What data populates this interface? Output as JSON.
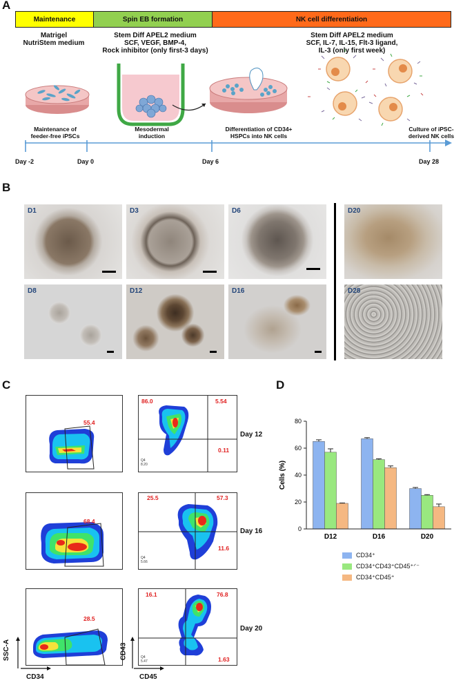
{
  "panel_labels": {
    "a": "A",
    "b": "B",
    "c": "C",
    "d": "D"
  },
  "panel_a": {
    "phases": [
      {
        "label": "Maintenance",
        "color": "#ffff00"
      },
      {
        "label": "Spin EB formation",
        "color": "#92d050"
      },
      {
        "label": "NK cell differentiation",
        "color": "#ff6a1a"
      }
    ],
    "media": [
      "Matrigel\nNutriStem medium",
      "Stem Diff APEL2 medium\nSCF, VEGF, BMP-4,\nRock inhibitor (only first-3 days)",
      "Stem Diff APEL2 medium\nSCF, IL-7, IL-15, Flt-3 ligand,\nIL-3 (only first week)"
    ],
    "steps": [
      "Maintenance of\nfeeder-free iPSCs",
      "Mesodermal\ninduction",
      "Differentiation of CD34+\nHSPCs into NK cells",
      "Culture of iPSC-\nderived NK cells"
    ],
    "days": [
      "Day -2",
      "Day 0",
      "Day 6",
      "Day 28"
    ],
    "timeline_color": "#5a9bd5"
  },
  "panel_b": {
    "tiles": [
      "D1",
      "D3",
      "D6",
      "D20",
      "D8",
      "D12",
      "D16",
      "D28"
    ]
  },
  "panel_c": {
    "gates": [
      "55.4",
      "68.4",
      "28.5"
    ],
    "quadrants": [
      {
        "ul": "86.0",
        "ur": "5.54",
        "lr": "0.11",
        "q4": "Q4\n8.20"
      },
      {
        "ul": "25.5",
        "ur": "57.3",
        "lr": "11.6",
        "q4": "Q4\n5.66"
      },
      {
        "ul": "16.1",
        "ur": "76.8",
        "lr": "1.63",
        "q4": "Q4\n5.47"
      }
    ],
    "day_labels": [
      "Day 12",
      "Day 16",
      "Day 20"
    ],
    "axes": {
      "ssc": "SSC-A",
      "cd34": "CD34",
      "cd43": "CD43",
      "cd45": "CD45"
    }
  },
  "chart_data": {
    "type": "bar",
    "categories": [
      "D12",
      "D16",
      "D20"
    ],
    "series": [
      {
        "name": "CD34⁺",
        "color": "#8db4f0",
        "values": [
          65,
          67,
          30
        ],
        "errors": [
          1.2,
          0.8,
          0.8
        ]
      },
      {
        "name": "CD34⁺CD43⁺CD45⁺ᐟ⁻",
        "color": "#99e87f",
        "values": [
          57,
          51.5,
          25
        ],
        "errors": [
          2.5,
          0.6,
          0.5
        ]
      },
      {
        "name": "CD34⁺CD45⁺",
        "color": "#f5b882",
        "values": [
          19,
          45.5,
          16.5
        ],
        "errors": [
          0.3,
          1.3,
          2
        ]
      }
    ],
    "ylabel": "Cells (%)",
    "ylim": [
      0,
      80
    ],
    "yticks": [
      "0",
      "20",
      "40",
      "60",
      "80"
    ],
    "legend_position": "bottom"
  }
}
